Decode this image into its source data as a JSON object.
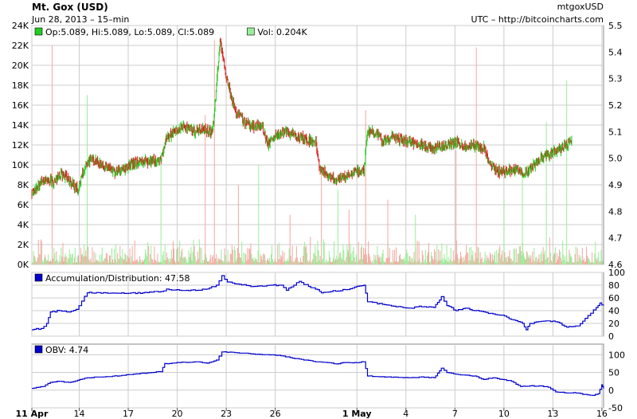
{
  "header": {
    "title": "Mt. Gox (USD)",
    "symbol": "mtgoxUSD",
    "subtitle": "Jun 28, 2013 – 15–min",
    "source": "UTC – http://bitcoincharts.com"
  },
  "colors": {
    "up": "#22cc22",
    "down": "#dd2222",
    "vol_up": "#99ee99",
    "vol_down": "#f4a8a0",
    "indicator": "#0000cc",
    "grid": "#cccccc",
    "frame": "#888888"
  },
  "chart_data": [
    {
      "type": "candlestick",
      "name": "price-volume",
      "legend": [
        {
          "label": "Op:5.089, Hi:5.089, Lo:5.089, Cl:5.089",
          "color": "#22cc22"
        },
        {
          "label": "Vol: 0.204K",
          "color": "#99ee99"
        }
      ],
      "x_ticks": [
        "11 Apr",
        "14",
        "17",
        "20",
        "23",
        "26",
        "1 May",
        "4",
        "7",
        "10",
        "13",
        "16"
      ],
      "y_left_ticks": [
        "0K",
        "2K",
        "4K",
        "6K",
        "8K",
        "10K",
        "12K",
        "14K",
        "16K",
        "18K",
        "20K",
        "22K",
        "24K"
      ],
      "y_left_range": [
        0,
        24000
      ],
      "y_right_ticks": [
        "4.6",
        "4.7",
        "4.8",
        "4.9",
        "5.0",
        "5.1",
        "5.2",
        "5.3",
        "5.4",
        "5.5"
      ],
      "y_right_range": [
        4.6,
        5.5
      ],
      "price_path": [
        [
          0,
          4.87
        ],
        [
          0.4,
          4.9
        ],
        [
          0.8,
          4.92
        ],
        [
          1.2,
          4.91
        ],
        [
          1.6,
          4.94
        ],
        [
          2.0,
          4.92
        ],
        [
          2.5,
          4.88
        ],
        [
          2.8,
          4.95
        ],
        [
          3.2,
          5.0
        ],
        [
          3.6,
          4.98
        ],
        [
          4.0,
          4.97
        ],
        [
          4.5,
          4.95
        ],
        [
          5.0,
          4.96
        ],
        [
          5.5,
          4.98
        ],
        [
          6.0,
          4.99
        ],
        [
          6.5,
          4.99
        ],
        [
          7.0,
          4.99
        ],
        [
          7.3,
          5.08
        ],
        [
          7.8,
          5.1
        ],
        [
          8.3,
          5.12
        ],
        [
          8.8,
          5.1
        ],
        [
          9.3,
          5.11
        ],
        [
          9.8,
          5.1
        ],
        [
          10.0,
          5.26
        ],
        [
          10.2,
          5.44
        ],
        [
          10.5,
          5.32
        ],
        [
          11.0,
          5.18
        ],
        [
          11.5,
          5.14
        ],
        [
          12.0,
          5.12
        ],
        [
          12.5,
          5.12
        ],
        [
          12.8,
          5.05
        ],
        [
          13.2,
          5.08
        ],
        [
          13.6,
          5.1
        ],
        [
          14.0,
          5.09
        ],
        [
          14.5,
          5.08
        ],
        [
          15.0,
          5.07
        ],
        [
          15.4,
          5.06
        ],
        [
          15.6,
          4.96
        ],
        [
          16.0,
          4.94
        ],
        [
          16.5,
          4.92
        ],
        [
          17.0,
          4.93
        ],
        [
          17.5,
          4.95
        ],
        [
          18.0,
          4.95
        ],
        [
          18.2,
          5.1
        ],
        [
          18.6,
          5.1
        ],
        [
          19.0,
          5.06
        ],
        [
          19.5,
          5.08
        ],
        [
          20.0,
          5.07
        ],
        [
          20.5,
          5.06
        ],
        [
          21.0,
          5.05
        ],
        [
          21.5,
          5.04
        ],
        [
          22.0,
          5.04
        ],
        [
          22.5,
          5.05
        ],
        [
          23.0,
          5.06
        ],
        [
          23.5,
          5.04
        ],
        [
          24.0,
          5.05
        ],
        [
          24.5,
          5.04
        ],
        [
          24.8,
          4.98
        ],
        [
          25.2,
          4.95
        ],
        [
          25.7,
          4.95
        ],
        [
          26.2,
          4.96
        ],
        [
          26.7,
          4.94
        ],
        [
          27.2,
          4.97
        ],
        [
          27.6,
          5.0
        ],
        [
          28.0,
          5.01
        ],
        [
          28.5,
          5.03
        ],
        [
          29.0,
          5.05
        ],
        [
          29.3,
          5.07
        ]
      ],
      "volume_spikes": [
        [
          1.1,
          22000,
          "down"
        ],
        [
          3.0,
          17000,
          "up"
        ],
        [
          7.0,
          10000,
          "up"
        ],
        [
          9.4,
          15000,
          "down"
        ],
        [
          9.9,
          22500,
          "down"
        ],
        [
          11.2,
          8000,
          "down"
        ],
        [
          12.3,
          10000,
          "up"
        ],
        [
          14.0,
          5000,
          "down"
        ],
        [
          15.7,
          9000,
          "down"
        ],
        [
          16.6,
          7500,
          "up"
        ],
        [
          17.2,
          5500,
          "down"
        ],
        [
          18.1,
          15500,
          "down"
        ],
        [
          19.3,
          6500,
          "down"
        ],
        [
          20.8,
          5000,
          "up"
        ],
        [
          23.0,
          11500,
          "down"
        ],
        [
          24.1,
          21800,
          "down"
        ],
        [
          25.6,
          6500,
          "up"
        ],
        [
          26.6,
          9000,
          "up"
        ],
        [
          27.9,
          14300,
          "up"
        ],
        [
          29.0,
          18500,
          "up"
        ]
      ],
      "volume_baseline": 1200
    },
    {
      "type": "line",
      "name": "accumulation-distribution",
      "legend": [
        {
          "label": "Accumulation/Distribution: 47.58",
          "color": "#0000cc"
        }
      ],
      "y_right_ticks": [
        "0",
        "20",
        "40",
        "60",
        "80",
        "100"
      ],
      "y_range": [
        0,
        100
      ],
      "points": [
        [
          0,
          10
        ],
        [
          0.5,
          12
        ],
        [
          0.8,
          20
        ],
        [
          1.0,
          38
        ],
        [
          1.5,
          40
        ],
        [
          2.0,
          38
        ],
        [
          2.4,
          42
        ],
        [
          2.7,
          55
        ],
        [
          3.0,
          68
        ],
        [
          4.0,
          68
        ],
        [
          5.0,
          67
        ],
        [
          6.0,
          68
        ],
        [
          6.5,
          69
        ],
        [
          7.0,
          70
        ],
        [
          7.3,
          74
        ],
        [
          8.0,
          72
        ],
        [
          9.0,
          72
        ],
        [
          9.5,
          74
        ],
        [
          10.0,
          80
        ],
        [
          10.3,
          95
        ],
        [
          10.6,
          85
        ],
        [
          11.0,
          82
        ],
        [
          12.0,
          78
        ],
        [
          13.0,
          80
        ],
        [
          13.5,
          80
        ],
        [
          13.8,
          72
        ],
        [
          14.2,
          80
        ],
        [
          14.5,
          86
        ],
        [
          15.0,
          78
        ],
        [
          15.5,
          73
        ],
        [
          15.7,
          68
        ],
        [
          16.2,
          70
        ],
        [
          17.0,
          73
        ],
        [
          17.5,
          77
        ],
        [
          18.0,
          80
        ],
        [
          18.2,
          54
        ],
        [
          19.0,
          50
        ],
        [
          20.0,
          46
        ],
        [
          20.5,
          44
        ],
        [
          21.0,
          47
        ],
        [
          21.8,
          45
        ],
        [
          22.0,
          53
        ],
        [
          22.2,
          62
        ],
        [
          22.5,
          48
        ],
        [
          23.0,
          40
        ],
        [
          23.5,
          44
        ],
        [
          24.0,
          40
        ],
        [
          25.0,
          35
        ],
        [
          25.5,
          33
        ],
        [
          26.0,
          26
        ],
        [
          26.6,
          20
        ],
        [
          26.8,
          10
        ],
        [
          27.0,
          20
        ],
        [
          28.0,
          24
        ],
        [
          28.5,
          22
        ],
        [
          29.0,
          14
        ],
        [
          29.6,
          16
        ],
        [
          30.0,
          28
        ],
        [
          30.3,
          36
        ],
        [
          30.6,
          45
        ],
        [
          30.8,
          52
        ],
        [
          31.0,
          48
        ]
      ]
    },
    {
      "type": "line",
      "name": "obv",
      "legend": [
        {
          "label": "OBV: 4.74",
          "color": "#0000cc"
        }
      ],
      "y_right_ticks": [
        "-50",
        "0",
        "50",
        "100"
      ],
      "y_range": [
        -50,
        130
      ],
      "points": [
        [
          0,
          5
        ],
        [
          0.6,
          10
        ],
        [
          1.0,
          22
        ],
        [
          1.5,
          25
        ],
        [
          2.0,
          22
        ],
        [
          2.6,
          30
        ],
        [
          3.0,
          35
        ],
        [
          4.0,
          38
        ],
        [
          5.0,
          42
        ],
        [
          6.0,
          48
        ],
        [
          6.5,
          50
        ],
        [
          7.0,
          52
        ],
        [
          7.2,
          75
        ],
        [
          8.0,
          78
        ],
        [
          9.0,
          80
        ],
        [
          9.5,
          76
        ],
        [
          10.0,
          85
        ],
        [
          10.3,
          108
        ],
        [
          11.0,
          106
        ],
        [
          12.0,
          102
        ],
        [
          13.0,
          100
        ],
        [
          13.5,
          97
        ],
        [
          14.0,
          92
        ],
        [
          14.5,
          88
        ],
        [
          15.0,
          84
        ],
        [
          15.5,
          80
        ],
        [
          16.0,
          78
        ],
        [
          16.5,
          74
        ],
        [
          17.0,
          78
        ],
        [
          17.5,
          78
        ],
        [
          18.0,
          80
        ],
        [
          18.2,
          40
        ],
        [
          19.0,
          38
        ],
        [
          20.0,
          36
        ],
        [
          20.5,
          35
        ],
        [
          21.0,
          37
        ],
        [
          21.8,
          35
        ],
        [
          22.0,
          48
        ],
        [
          22.2,
          62
        ],
        [
          22.5,
          50
        ],
        [
          23.0,
          45
        ],
        [
          24.0,
          40
        ],
        [
          24.5,
          30
        ],
        [
          25.0,
          35
        ],
        [
          25.5,
          30
        ],
        [
          26.0,
          25
        ],
        [
          26.5,
          10
        ],
        [
          27.0,
          12
        ],
        [
          27.5,
          12
        ],
        [
          28.0,
          8
        ],
        [
          28.4,
          -5
        ],
        [
          29.0,
          -8
        ],
        [
          29.5,
          -8
        ],
        [
          30.0,
          -12
        ],
        [
          30.4,
          -15
        ],
        [
          30.7,
          -10
        ],
        [
          30.9,
          15
        ],
        [
          31.0,
          5
        ]
      ]
    }
  ]
}
